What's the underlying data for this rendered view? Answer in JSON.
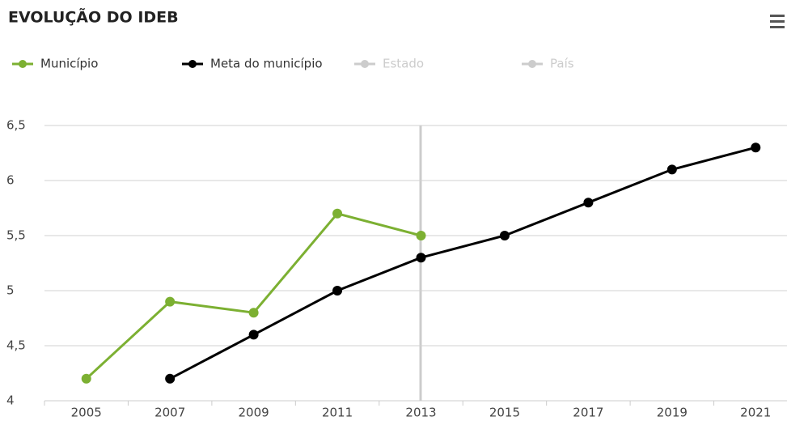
{
  "chart_data": {
    "type": "line",
    "title": "EVOLUÇÃO DO IDEB",
    "categories": [
      "2005",
      "2007",
      "2009",
      "2011",
      "2013",
      "2015",
      "2017",
      "2019",
      "2021"
    ],
    "series": [
      {
        "name": "Município",
        "color": "#7cb032",
        "visible": true,
        "values": [
          4.2,
          4.9,
          4.8,
          5.7,
          5.5,
          null,
          null,
          null,
          null
        ]
      },
      {
        "name": "Meta do município",
        "color": "#000000",
        "visible": true,
        "values": [
          null,
          4.2,
          4.6,
          5.0,
          5.3,
          5.5,
          5.8,
          6.1,
          6.3
        ]
      },
      {
        "name": "Estado",
        "color": "#cccccc",
        "visible": false,
        "values": [
          null,
          null,
          null,
          null,
          null,
          null,
          null,
          null,
          null
        ]
      },
      {
        "name": "País",
        "color": "#cccccc",
        "visible": false,
        "values": [
          null,
          null,
          null,
          null,
          null,
          null,
          null,
          null,
          null
        ]
      }
    ],
    "ylim": [
      4,
      6.5
    ],
    "yticks": [
      4,
      {
        "value": 4.5,
        "label": "4,5"
      },
      5,
      {
        "value": 5.5,
        "label": "5,5"
      },
      6,
      {
        "value": 6.5,
        "label": "6,5"
      }
    ],
    "grid": true
  }
}
